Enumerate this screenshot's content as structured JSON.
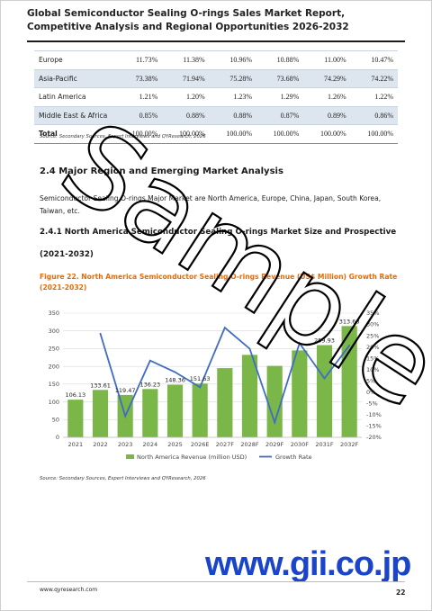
{
  "header": {
    "title": "Global Semiconductor Sealing O-rings Sales Market Report, Competitive Analysis and Regional Opportunities 2026-2032"
  },
  "region_table": {
    "rows": [
      {
        "name": "Europe",
        "values": [
          "11.73%",
          "11.38%",
          "10.96%",
          "10.88%",
          "11.00%",
          "10.47%"
        ]
      },
      {
        "name": "Asia-Pacific",
        "values": [
          "73.38%",
          "71.94%",
          "75.28%",
          "73.68%",
          "74.29%",
          "74.22%"
        ]
      },
      {
        "name": "Latin America",
        "values": [
          "1.21%",
          "1.20%",
          "1.23%",
          "1.29%",
          "1.26%",
          "1.22%"
        ]
      },
      {
        "name": "Middle East & Africa",
        "values": [
          "0.85%",
          "0.88%",
          "0.88%",
          "0.87%",
          "0.89%",
          "0.86%"
        ]
      },
      {
        "name": "Total",
        "values": [
          "100.00%",
          "100.00%",
          "100.00%",
          "100.00%",
          "100.00%",
          "100.00%"
        ]
      }
    ],
    "source": "Source: Secondary Sources, Expert Interviews and QYResearch, 2026"
  },
  "section": {
    "heading": "2.4  Major Region and Emerging Market Analysis",
    "body": "Semiconductor Sealing O-rings Major Market are North America, Europe, China, Japan, South Korea, Taiwan, etc.",
    "sub_heading": "2.4.1  North America Semiconductor Sealing O-rings Market Size and Prospective",
    "sub_heading_years": "(2021-2032)"
  },
  "figure": {
    "caption": "Figure 22.  North America Semiconductor Sealing O-rings Revenue (US$ Million) Growth Rate (2021-2032)",
    "source": "Source: Secondary Sources, Expert Interviews and QYResearch, 2026"
  },
  "chart_data": {
    "type": "bar",
    "categories": [
      "2021",
      "2022",
      "2023",
      "2024",
      "2025",
      "2026E",
      "2027F",
      "2028F",
      "2029F",
      "2030F",
      "2031F",
      "2032F"
    ],
    "series": [
      {
        "name": "North America Revenue (million USD)",
        "type": "bar",
        "axis": "left",
        "values": [
          106.13,
          133.61,
          119.47,
          136.23,
          148.36,
          151.63,
          195.0,
          232.45,
          201.37,
          245.0,
          259.93,
          313.68
        ],
        "labels": [
          "106.13",
          "133.61",
          "119.47",
          "136.23",
          "148.36",
          "151.63",
          "",
          "",
          "",
          "",
          "259.93",
          "313.68"
        ],
        "color": "#7ab648"
      },
      {
        "name": "Growth Rate",
        "type": "line",
        "axis": "right",
        "values": [
          null,
          25.9,
          -10.6,
          14.0,
          8.9,
          2.2,
          28.6,
          19.2,
          -13.4,
          21.7,
          6.1,
          20.7
        ],
        "color": "#3f6cc4"
      }
    ],
    "ylim_left": [
      0,
      350
    ],
    "yticks_left": [
      "0",
      "50",
      "100",
      "150",
      "200",
      "250",
      "300",
      "350"
    ],
    "ylim_right": [
      -20,
      35
    ],
    "yticks_right": [
      "-20%",
      "-15%",
      "-10%",
      "-5%",
      "0%",
      "5%",
      "10%",
      "15%",
      "20%",
      "25%",
      "30%",
      "35%"
    ],
    "grid": true,
    "legend_position": "bottom"
  },
  "watermark": {
    "text": "Sample",
    "color": "#000000"
  },
  "footer": {
    "brand": "www.gii.co.jp",
    "brand_color": "#1a44c9",
    "url": "www.qyresearch.com",
    "page": "22"
  }
}
